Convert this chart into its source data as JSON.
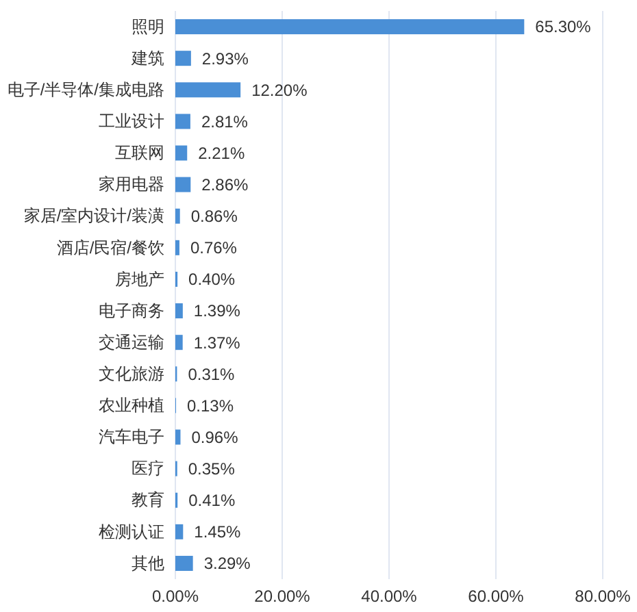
{
  "chart_data": {
    "type": "bar",
    "orientation": "horizontal",
    "categories": [
      "照明",
      "建筑",
      "电子/半导体/集成电路",
      "工业设计",
      "互联网",
      "家用电器",
      "家居/室内设计/装潢",
      "酒店/民宿/餐饮",
      "房地产",
      "电子商务",
      "交通运输",
      "文化旅游",
      "农业种植",
      "汽车电子",
      "医疗",
      "教育",
      "检测认证",
      "其他"
    ],
    "values": [
      65.3,
      2.93,
      12.2,
      2.81,
      2.21,
      2.86,
      0.86,
      0.76,
      0.4,
      1.39,
      1.37,
      0.31,
      0.13,
      0.96,
      0.35,
      0.41,
      1.45,
      3.29
    ],
    "value_labels": [
      "65.30%",
      "2.93%",
      "12.20%",
      "2.81%",
      "2.21%",
      "2.86%",
      "0.86%",
      "0.76%",
      "0.40%",
      "1.39%",
      "1.37%",
      "0.31%",
      "0.13%",
      "0.96%",
      "0.35%",
      "0.41%",
      "1.45%",
      "3.29%"
    ],
    "color": "#4a8fd6",
    "xlim": [
      0,
      80
    ],
    "xticks": [
      {
        "value": 0,
        "label": "0.00%"
      },
      {
        "value": 20,
        "label": "20.00%"
      },
      {
        "value": 40,
        "label": "40.00%"
      },
      {
        "value": 60,
        "label": "60.00%"
      },
      {
        "value": 80,
        "label": "80.00%"
      }
    ],
    "grid": "x"
  }
}
